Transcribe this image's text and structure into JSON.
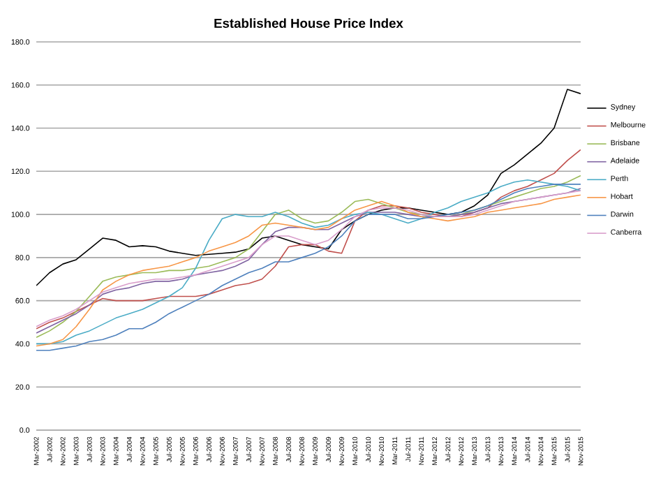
{
  "chart_data": {
    "type": "line",
    "title": "Established House Price Index",
    "categories": [
      "Mar-2002",
      "Jul-2002",
      "Nov-2002",
      "Mar-2003",
      "Jul-2003",
      "Nov-2003",
      "Mar-2004",
      "Jul-2004",
      "Nov-2004",
      "Mar-2005",
      "Jul-2005",
      "Nov-2005",
      "Mar-2006",
      "Jul-2006",
      "Nov-2006",
      "Mar-2007",
      "Jul-2007",
      "Nov-2007",
      "Mar-2008",
      "Jul-2008",
      "Nov-2008",
      "Mar-2009",
      "Jul-2009",
      "Nov-2009",
      "Mar-2010",
      "Jul-2010",
      "Nov-2010",
      "Mar-2011",
      "Jul-2011",
      "Nov-2011",
      "Mar-2012",
      "Jul-2012",
      "Nov-2012",
      "Mar-2013",
      "Jul-2013",
      "Nov-2013",
      "Mar-2014",
      "Jul-2014",
      "Nov-2014",
      "Mar-2015",
      "Jul-2015",
      "Nov-2015"
    ],
    "ylim": [
      0,
      180
    ],
    "yticks": [
      {
        "value": 0,
        "label": "0.0"
      },
      {
        "value": 20,
        "label": "20.0"
      },
      {
        "value": 40,
        "label": "40.0"
      },
      {
        "value": 60,
        "label": "60.0"
      },
      {
        "value": 80,
        "label": "80.0"
      },
      {
        "value": 100,
        "label": "100.0"
      },
      {
        "value": 120,
        "label": "120.0"
      },
      {
        "value": 140,
        "label": "140.0"
      },
      {
        "value": 160,
        "label": "160.0"
      },
      {
        "value": 180,
        "label": "180.0"
      }
    ],
    "grid": "y",
    "legend": "right",
    "marker": "none",
    "line_style": "solid",
    "series": [
      {
        "name": "Sydney",
        "color": "#000000",
        "values": [
          67,
          73,
          77,
          79,
          84,
          89,
          88,
          85,
          85.5,
          85,
          83,
          82,
          81,
          81.5,
          82,
          82.5,
          84,
          89,
          90,
          88,
          86,
          85,
          84,
          93,
          97,
          100,
          102,
          103,
          103,
          102,
          101,
          100,
          101,
          104,
          109,
          119,
          123,
          128,
          133,
          140,
          158,
          156
        ]
      },
      {
        "name": "Melbourne",
        "color": "#c0504d",
        "values": [
          47,
          50,
          52,
          55,
          58,
          61,
          60,
          60,
          60,
          61,
          62,
          62,
          62,
          63,
          65,
          67,
          68,
          70,
          76,
          85,
          86,
          86,
          83,
          82,
          97,
          102,
          104,
          104,
          103,
          101,
          100,
          99,
          99,
          101,
          103,
          108,
          111,
          113,
          116,
          119,
          125,
          130
        ]
      },
      {
        "name": "Brisbane",
        "color": "#9bbb59",
        "values": [
          43,
          46,
          50,
          55,
          62,
          69,
          71,
          72,
          73,
          73,
          74,
          74,
          75,
          76,
          78,
          80,
          84,
          92,
          100,
          102,
          98,
          96,
          97,
          101,
          106,
          107,
          105,
          103,
          101,
          100,
          99,
          99,
          100,
          102,
          104,
          106,
          108,
          110,
          112,
          113,
          115,
          118
        ]
      },
      {
        "name": "Adelaide",
        "color": "#8064a2",
        "values": [
          45,
          48,
          51,
          54,
          58,
          63,
          65,
          66,
          68,
          69,
          69,
          70,
          72,
          73,
          74,
          76,
          79,
          86,
          92,
          94,
          94,
          93,
          93,
          96,
          99,
          101,
          101,
          101,
          100,
          99,
          99,
          99,
          100,
          101,
          103,
          105,
          106,
          107,
          108,
          109,
          110,
          112
        ]
      },
      {
        "name": "Perth",
        "color": "#4bacc6",
        "values": [
          40,
          40,
          41,
          44,
          46,
          49,
          52,
          54,
          56,
          59,
          62,
          66,
          75,
          88,
          98,
          100,
          99,
          99,
          101,
          99,
          96,
          94,
          95,
          98,
          100,
          101,
          100,
          98,
          96,
          98,
          101,
          103,
          106,
          108,
          110,
          113,
          115,
          116,
          115,
          114,
          113,
          111
        ]
      },
      {
        "name": "Hobart",
        "color": "#f79646",
        "values": [
          39,
          40,
          42,
          48,
          56,
          65,
          69,
          72,
          74,
          75,
          76,
          78,
          80,
          83,
          85,
          87,
          90,
          95,
          96,
          95,
          94,
          93,
          94,
          98,
          102,
          104,
          106,
          104,
          101,
          99,
          98,
          97,
          98,
          99,
          101,
          102,
          103,
          104,
          105,
          107,
          108,
          109
        ]
      },
      {
        "name": "Darwin",
        "color": "#4f81bd",
        "values": [
          37,
          37,
          38,
          39,
          41,
          42,
          44,
          47,
          47,
          50,
          54,
          57,
          60,
          63,
          67,
          70,
          73,
          75,
          78,
          78,
          80,
          82,
          85,
          90,
          97,
          100,
          100,
          100,
          98,
          98,
          99,
          100,
          101,
          102,
          104,
          107,
          110,
          112,
          113,
          114,
          114,
          114
        ]
      },
      {
        "name": "Canberra",
        "color": "#d99ecb",
        "values": [
          48,
          51,
          53,
          56,
          60,
          64,
          66,
          68,
          69,
          70,
          70,
          71,
          72,
          74,
          76,
          78,
          80,
          86,
          90,
          90,
          88,
          86,
          88,
          93,
          99,
          102,
          103,
          103,
          102,
          100,
          99,
          99,
          99,
          100,
          102,
          104,
          106,
          107,
          108,
          109,
          110,
          111
        ]
      }
    ]
  }
}
